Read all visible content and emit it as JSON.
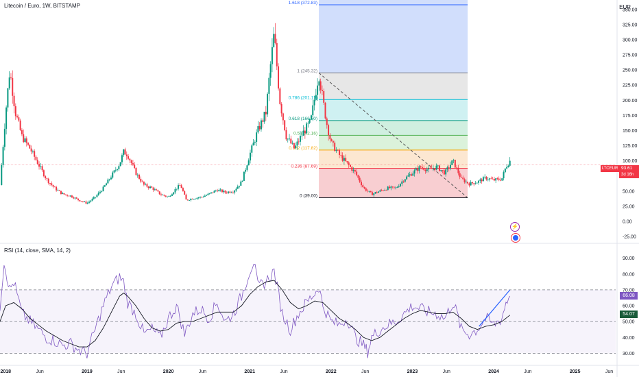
{
  "header": {
    "title": "Litecoin / Euro, 1W, BITSTAMP",
    "currency": "EUR"
  },
  "price_badge": {
    "symbol": "LTCEUR",
    "price": "93.61",
    "countdown": "3d 16h",
    "color": "#f23645"
  },
  "rsi_panel": {
    "title": "RSI (14, close, SMA, 14, 2)",
    "rsi_value": "66.08",
    "ma_value": "54.07",
    "rsi_color": "#7e57c2",
    "ma_color": "#1a5c3a"
  },
  "colors": {
    "up": "#089981",
    "down": "#f23645",
    "trendline": "#2962ff"
  },
  "icons": [
    "lightning-icon",
    "flag-icon"
  ],
  "chart_data": [
    {
      "type": "candlestick",
      "title": "Litecoin / Euro, 1W, BITSTAMP",
      "ylabel": "EUR",
      "ylim": [
        -25,
        360
      ],
      "y_ticks": [
        350,
        325,
        300,
        275,
        250,
        225,
        200,
        175,
        150,
        125,
        100,
        75,
        50,
        25,
        0,
        -25
      ],
      "x_ticks": [
        "2018",
        "Jun",
        "2019",
        "Jun",
        "2020",
        "Jun",
        "2021",
        "Jun",
        "2022",
        "Jun",
        "2023",
        "Jun",
        "2024",
        "Jun",
        "2025",
        "Jun"
      ],
      "x_range": [
        2017.93,
        2025.5
      ],
      "close_trend": [
        [
          2017.93,
          60
        ],
        [
          2018.0,
          180
        ],
        [
          2018.05,
          250
        ],
        [
          2018.12,
          180
        ],
        [
          2018.2,
          140
        ],
        [
          2018.3,
          120
        ],
        [
          2018.4,
          95
        ],
        [
          2018.5,
          70
        ],
        [
          2018.6,
          55
        ],
        [
          2018.7,
          45
        ],
        [
          2018.8,
          42
        ],
        [
          2018.9,
          35
        ],
        [
          2019.0,
          30
        ],
        [
          2019.1,
          40
        ],
        [
          2019.2,
          55
        ],
        [
          2019.3,
          75
        ],
        [
          2019.4,
          95
        ],
        [
          2019.45,
          115
        ],
        [
          2019.5,
          110
        ],
        [
          2019.55,
          95
        ],
        [
          2019.6,
          80
        ],
        [
          2019.7,
          60
        ],
        [
          2019.8,
          55
        ],
        [
          2019.9,
          45
        ],
        [
          2020.0,
          40
        ],
        [
          2020.1,
          55
        ],
        [
          2020.15,
          60
        ],
        [
          2020.22,
          35
        ],
        [
          2020.3,
          38
        ],
        [
          2020.4,
          40
        ],
        [
          2020.5,
          45
        ],
        [
          2020.6,
          52
        ],
        [
          2020.7,
          48
        ],
        [
          2020.8,
          50
        ],
        [
          2020.9,
          65
        ],
        [
          2021.0,
          110
        ],
        [
          2021.1,
          150
        ],
        [
          2021.2,
          180
        ],
        [
          2021.25,
          250
        ],
        [
          2021.3,
          310
        ],
        [
          2021.37,
          200
        ],
        [
          2021.45,
          140
        ],
        [
          2021.55,
          120
        ],
        [
          2021.65,
          145
        ],
        [
          2021.75,
          165
        ],
        [
          2021.85,
          245
        ],
        [
          2021.9,
          200
        ],
        [
          2021.95,
          160
        ],
        [
          2022.0,
          130
        ],
        [
          2022.1,
          110
        ],
        [
          2022.2,
          95
        ],
        [
          2022.3,
          80
        ],
        [
          2022.4,
          55
        ],
        [
          2022.5,
          45
        ],
        [
          2022.6,
          50
        ],
        [
          2022.7,
          55
        ],
        [
          2022.8,
          55
        ],
        [
          2022.9,
          70
        ],
        [
          2023.0,
          80
        ],
        [
          2023.1,
          90
        ],
        [
          2023.2,
          85
        ],
        [
          2023.3,
          90
        ],
        [
          2023.4,
          80
        ],
        [
          2023.5,
          100
        ],
        [
          2023.55,
          85
        ],
        [
          2023.6,
          70
        ],
        [
          2023.7,
          62
        ],
        [
          2023.8,
          65
        ],
        [
          2023.9,
          72
        ],
        [
          2024.0,
          68
        ],
        [
          2024.1,
          70
        ],
        [
          2024.15,
          90
        ],
        [
          2024.2,
          100
        ]
      ],
      "current_price": 93.61,
      "fibonacci": {
        "levels": [
          {
            "ratio": "0",
            "price": 39.0,
            "label": "0 (39.00)"
          },
          {
            "ratio": "0.236",
            "price": 87.69,
            "label": "0.236 (87.69)"
          },
          {
            "ratio": "0.382",
            "price": 117.82,
            "label": "0.382 (117.82)"
          },
          {
            "ratio": "0.5",
            "price": 142.16,
            "label": "0.5 (142.16)"
          },
          {
            "ratio": "0.618",
            "price": 166.5,
            "label": "0.618 (166.50)"
          },
          {
            "ratio": "0.786",
            "price": 201.17,
            "label": "0.786 (201.17)"
          },
          {
            "ratio": "1",
            "price": 245.32,
            "label": "1 (245.32)"
          },
          {
            "ratio": "1.618",
            "price": 372.83,
            "label": "1.618 (372.83)"
          }
        ],
        "x_start": 2021.85,
        "x_end": 2023.68
      }
    },
    {
      "type": "line",
      "title": "RSI (14, close, SMA, 14, 2)",
      "ylim": [
        28,
        92
      ],
      "y_ticks": [
        90,
        80,
        70,
        60,
        50,
        40,
        30
      ],
      "bands": [
        30,
        50,
        70
      ],
      "series": [
        {
          "name": "RSI",
          "values": [
            [
              2017.93,
              60
            ],
            [
              2017.98,
              88
            ],
            [
              2018.05,
              70
            ],
            [
              2018.1,
              75
            ],
            [
              2018.2,
              55
            ],
            [
              2018.3,
              50
            ],
            [
              2018.4,
              45
            ],
            [
              2018.5,
              40
            ],
            [
              2018.6,
              38
            ],
            [
              2018.7,
              35
            ],
            [
              2018.8,
              36
            ],
            [
              2018.9,
              32
            ],
            [
              2019.0,
              30
            ],
            [
              2019.1,
              45
            ],
            [
              2019.2,
              60
            ],
            [
              2019.3,
              72
            ],
            [
              2019.4,
              78
            ],
            [
              2019.45,
              75
            ],
            [
              2019.5,
              62
            ],
            [
              2019.6,
              55
            ],
            [
              2019.7,
              42
            ],
            [
              2019.8,
              45
            ],
            [
              2019.9,
              40
            ],
            [
              2020.0,
              52
            ],
            [
              2020.1,
              60
            ],
            [
              2020.2,
              42
            ],
            [
              2020.3,
              55
            ],
            [
              2020.4,
              58
            ],
            [
              2020.5,
              52
            ],
            [
              2020.6,
              62
            ],
            [
              2020.7,
              50
            ],
            [
              2020.8,
              55
            ],
            [
              2020.9,
              66
            ],
            [
              2021.0,
              82
            ],
            [
              2021.05,
              88
            ],
            [
              2021.1,
              72
            ],
            [
              2021.2,
              75
            ],
            [
              2021.3,
              82
            ],
            [
              2021.4,
              55
            ],
            [
              2021.5,
              45
            ],
            [
              2021.6,
              55
            ],
            [
              2021.7,
              62
            ],
            [
              2021.8,
              68
            ],
            [
              2021.85,
              72
            ],
            [
              2021.9,
              60
            ],
            [
              2022.0,
              50
            ],
            [
              2022.1,
              48
            ],
            [
              2022.2,
              52
            ],
            [
              2022.3,
              40
            ],
            [
              2022.4,
              35
            ],
            [
              2022.45,
              31
            ],
            [
              2022.5,
              40
            ],
            [
              2022.6,
              45
            ],
            [
              2022.7,
              48
            ],
            [
              2022.8,
              50
            ],
            [
              2022.9,
              55
            ],
            [
              2023.0,
              60
            ],
            [
              2023.1,
              58
            ],
            [
              2023.2,
              56
            ],
            [
              2023.3,
              55
            ],
            [
              2023.4,
              52
            ],
            [
              2023.5,
              62
            ],
            [
              2023.55,
              55
            ],
            [
              2023.6,
              45
            ],
            [
              2023.7,
              42
            ],
            [
              2023.8,
              45
            ],
            [
              2023.9,
              52
            ],
            [
              2024.0,
              48
            ],
            [
              2024.1,
              52
            ],
            [
              2024.15,
              62
            ],
            [
              2024.2,
              66.08
            ]
          ]
        },
        {
          "name": "RSI-based MA",
          "values": [
            [
              2017.93,
              50
            ],
            [
              2018.0,
              60
            ],
            [
              2018.1,
              62
            ],
            [
              2018.2,
              58
            ],
            [
              2018.3,
              52
            ],
            [
              2018.4,
              48
            ],
            [
              2018.5,
              44
            ],
            [
              2018.6,
              41
            ],
            [
              2018.7,
              38
            ],
            [
              2018.8,
              36
            ],
            [
              2018.9,
              34
            ],
            [
              2019.0,
              34
            ],
            [
              2019.1,
              38
            ],
            [
              2019.2,
              46
            ],
            [
              2019.3,
              56
            ],
            [
              2019.4,
              66
            ],
            [
              2019.45,
              68
            ],
            [
              2019.5,
              66
            ],
            [
              2019.6,
              60
            ],
            [
              2019.7,
              52
            ],
            [
              2019.8,
              46
            ],
            [
              2019.9,
              44
            ],
            [
              2020.0,
              45
            ],
            [
              2020.1,
              49
            ],
            [
              2020.2,
              50
            ],
            [
              2020.3,
              50
            ],
            [
              2020.4,
              52
            ],
            [
              2020.5,
              54
            ],
            [
              2020.6,
              56
            ],
            [
              2020.7,
              56
            ],
            [
              2020.8,
              56
            ],
            [
              2020.9,
              60
            ],
            [
              2021.0,
              67
            ],
            [
              2021.1,
              72
            ],
            [
              2021.2,
              75
            ],
            [
              2021.3,
              76
            ],
            [
              2021.4,
              70
            ],
            [
              2021.5,
              62
            ],
            [
              2021.6,
              58
            ],
            [
              2021.7,
              60
            ],
            [
              2021.8,
              63
            ],
            [
              2021.9,
              62
            ],
            [
              2022.0,
              57
            ],
            [
              2022.1,
              52
            ],
            [
              2022.2,
              49
            ],
            [
              2022.3,
              45
            ],
            [
              2022.4,
              40
            ],
            [
              2022.5,
              38
            ],
            [
              2022.6,
              40
            ],
            [
              2022.7,
              44
            ],
            [
              2022.8,
              48
            ],
            [
              2022.9,
              52
            ],
            [
              2023.0,
              55
            ],
            [
              2023.1,
              57
            ],
            [
              2023.2,
              56
            ],
            [
              2023.3,
              55
            ],
            [
              2023.4,
              55
            ],
            [
              2023.5,
              56
            ],
            [
              2023.6,
              52
            ],
            [
              2023.7,
              47
            ],
            [
              2023.8,
              45
            ],
            [
              2023.9,
              47
            ],
            [
              2024.0,
              48
            ],
            [
              2024.1,
              50
            ],
            [
              2024.2,
              54.07
            ]
          ]
        }
      ],
      "trendline": [
        [
          2023.82,
          47
        ],
        [
          2024.2,
          70
        ]
      ]
    }
  ]
}
